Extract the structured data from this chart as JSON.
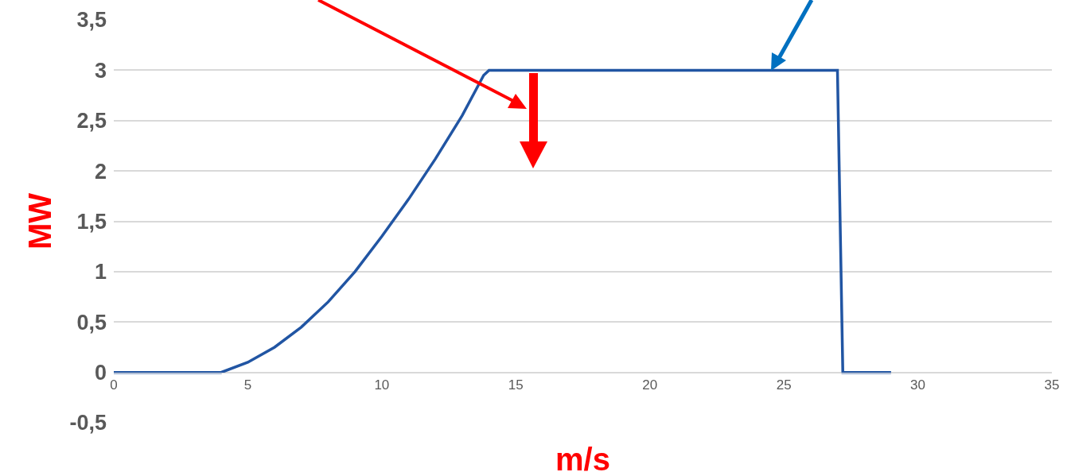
{
  "chart_data": {
    "type": "line",
    "xlabel": "m/s",
    "ylabel": "MW",
    "x": [
      0,
      4,
      5,
      6,
      7,
      8,
      9,
      10,
      11,
      12,
      13,
      13.8,
      14,
      27,
      27.2,
      29
    ],
    "series": [
      {
        "color": "#2155a3",
        "values": [
          0,
          0,
          0.1,
          0.25,
          0.45,
          0.7,
          1.0,
          1.35,
          1.72,
          2.12,
          2.55,
          2.95,
          3,
          3,
          0,
          0
        ]
      }
    ],
    "xlim": [
      0,
      35
    ],
    "xticks": [
      0,
      5,
      10,
      15,
      20,
      25,
      30,
      35
    ],
    "ylim": [
      -0.5,
      3.5
    ],
    "yticks": [
      {
        "value": -0.5,
        "label": "-0,5"
      },
      0,
      {
        "value": 0.5,
        "label": "0,5"
      },
      1,
      {
        "value": 1.5,
        "label": "1,5"
      },
      2,
      {
        "value": 2.5,
        "label": "2,5"
      },
      3,
      {
        "value": 3.5,
        "label": "3,5"
      }
    ],
    "grid": "y",
    "marker": "none",
    "line_style": "solid"
  }
}
